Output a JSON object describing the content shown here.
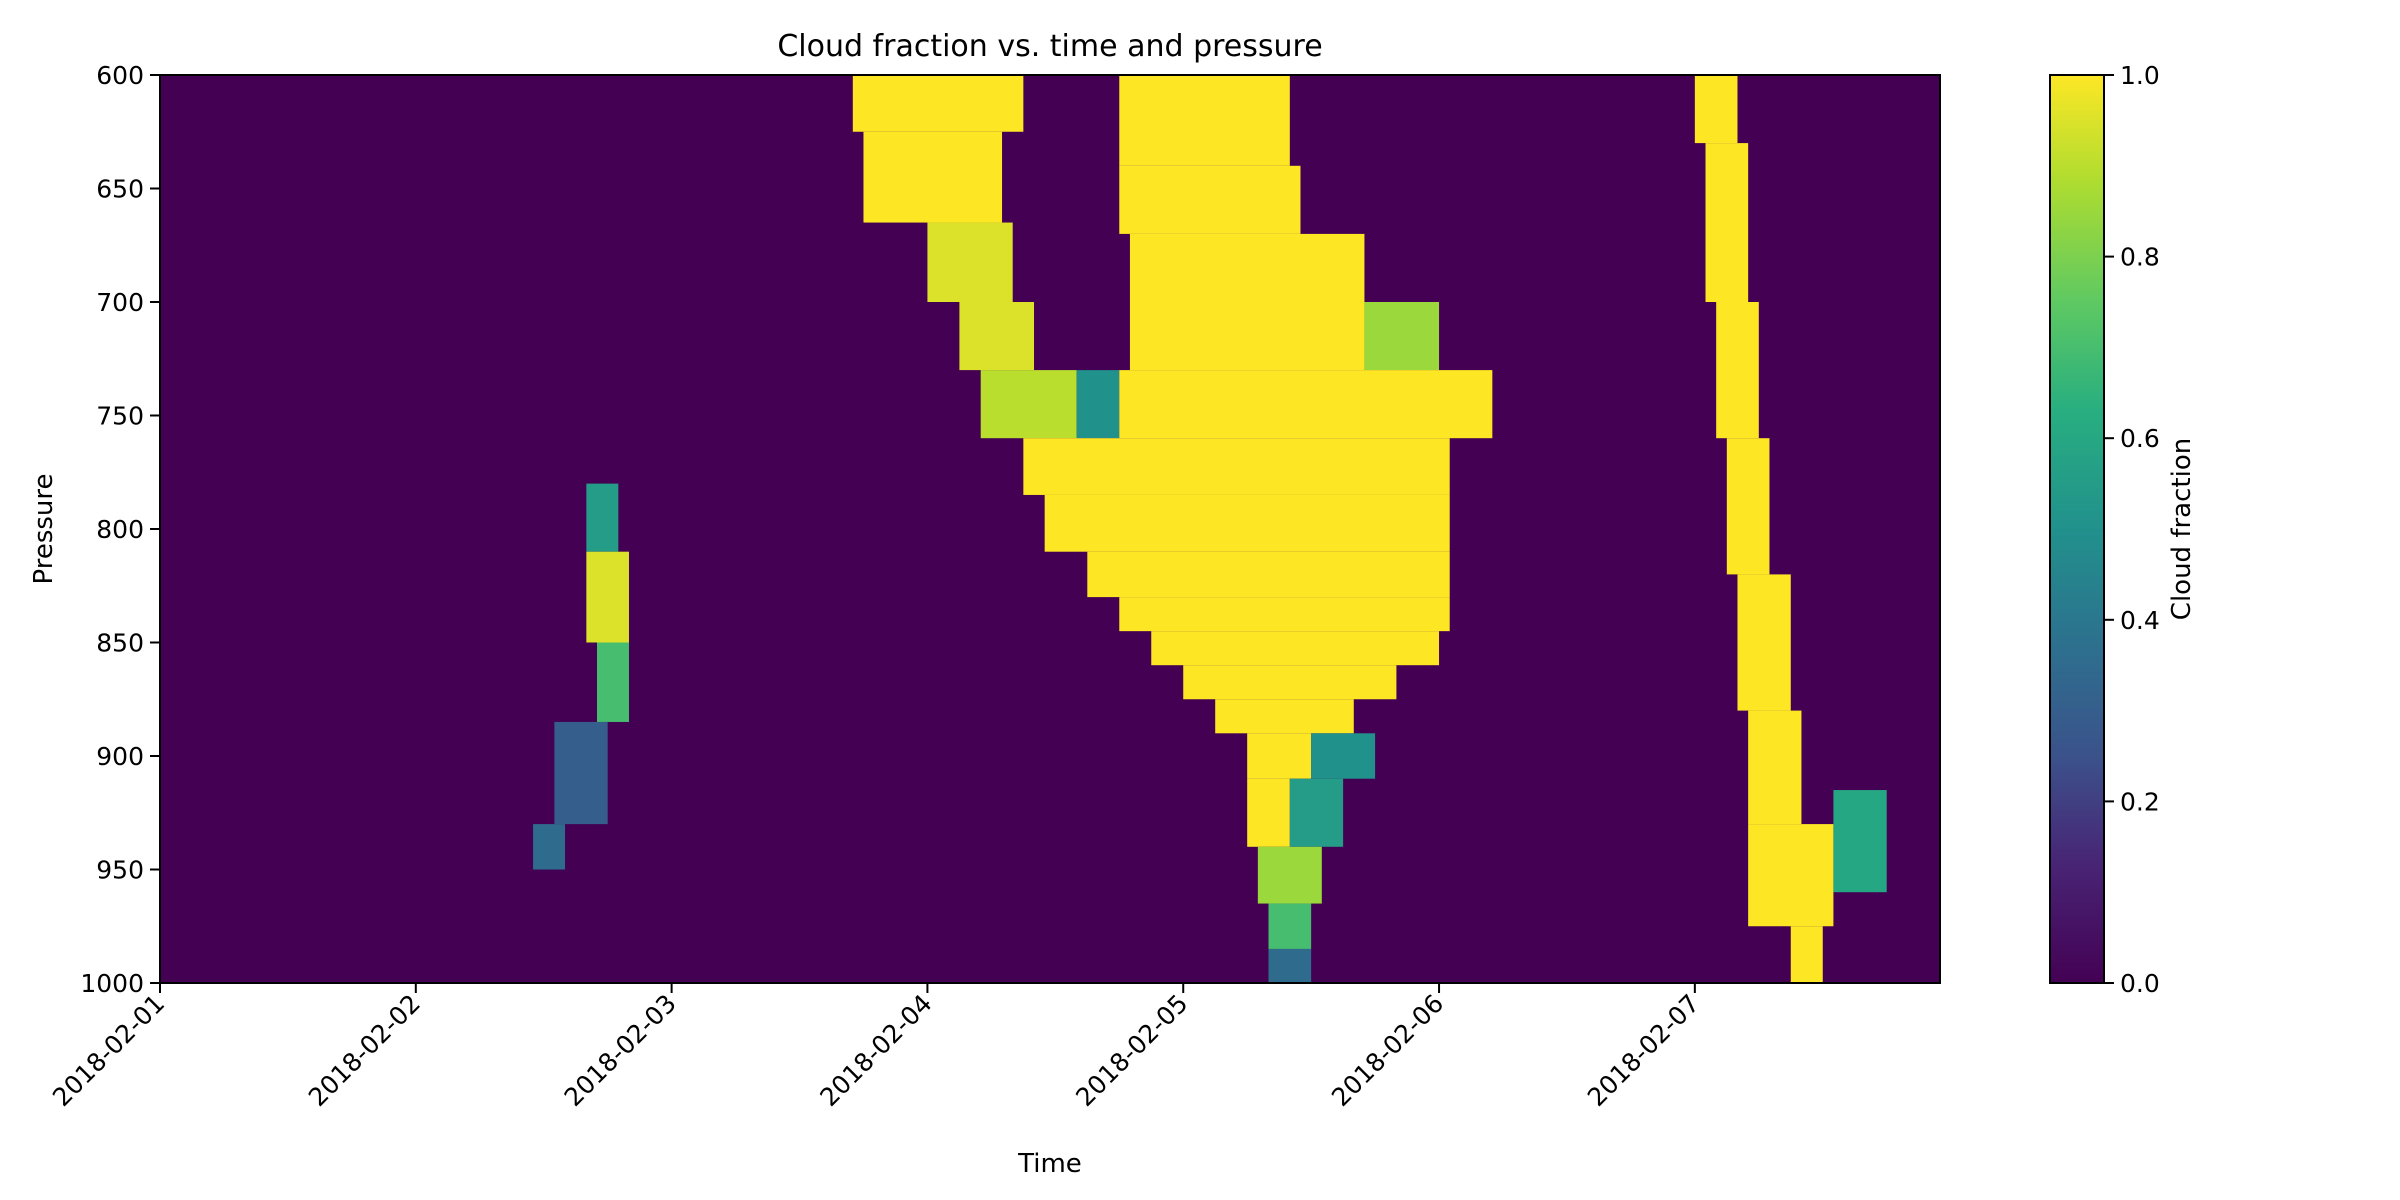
{
  "chart_data": {
    "type": "heatmap",
    "title": "Cloud fraction vs. time and pressure",
    "xlabel": "Time",
    "ylabel": "Pressure",
    "x_ticks": [
      "2018-02-01",
      "2018-02-02",
      "2018-02-03",
      "2018-02-04",
      "2018-02-05",
      "2018-02-06",
      "2018-02-07"
    ],
    "xlim": [
      "2018-02-01T00:00",
      "2018-02-07T23:00"
    ],
    "y_ticks": [
      600,
      650,
      700,
      750,
      800,
      850,
      900,
      950,
      1000
    ],
    "ylim": [
      1000,
      600
    ],
    "y_inverted": true,
    "colorbar": {
      "label": "Cloud fraction",
      "ticks": [
        0.0,
        0.2,
        0.4,
        0.6,
        0.8,
        1.0
      ],
      "tick_labels": [
        "0.0",
        "0.2",
        "0.4",
        "0.6",
        "0.8",
        "1.0"
      ],
      "colormap": "viridis",
      "vmin": 0.0,
      "vmax": 1.0
    },
    "background_value": 0.0,
    "regions": [
      {
        "pressure": [
          780,
          810
        ],
        "time": [
          "2018-02-02T16:00",
          "2018-02-02T19:00"
        ],
        "value": 0.55
      },
      {
        "pressure": [
          810,
          850
        ],
        "time": [
          "2018-02-02T16:00",
          "2018-02-02T20:00"
        ],
        "value": 0.95
      },
      {
        "pressure": [
          850,
          885
        ],
        "time": [
          "2018-02-02T17:00",
          "2018-02-02T20:00"
        ],
        "value": 0.7
      },
      {
        "pressure": [
          885,
          930
        ],
        "time": [
          "2018-02-02T13:00",
          "2018-02-02T18:00"
        ],
        "value": 0.3
      },
      {
        "pressure": [
          930,
          950
        ],
        "time": [
          "2018-02-02T11:00",
          "2018-02-02T14:00"
        ],
        "value": 0.35
      },
      {
        "pressure": [
          600,
          625
        ],
        "time": [
          "2018-02-03T17:00",
          "2018-02-04T09:00"
        ],
        "value": 1.0
      },
      {
        "pressure": [
          625,
          665
        ],
        "time": [
          "2018-02-03T18:00",
          "2018-02-04T07:00"
        ],
        "value": 1.0
      },
      {
        "pressure": [
          665,
          700
        ],
        "time": [
          "2018-02-04T00:00",
          "2018-02-04T08:00"
        ],
        "value": 0.95
      },
      {
        "pressure": [
          700,
          730
        ],
        "time": [
          "2018-02-04T03:00",
          "2018-02-04T10:00"
        ],
        "value": 0.95
      },
      {
        "pressure": [
          730,
          760
        ],
        "time": [
          "2018-02-04T05:00",
          "2018-02-04T14:00"
        ],
        "value": 0.9
      },
      {
        "pressure": [
          730,
          760
        ],
        "time": [
          "2018-02-04T14:00",
          "2018-02-04T18:00"
        ],
        "value": 0.5
      },
      {
        "pressure": [
          600,
          640
        ],
        "time": [
          "2018-02-04T18:00",
          "2018-02-05T10:00"
        ],
        "value": 1.0
      },
      {
        "pressure": [
          640,
          670
        ],
        "time": [
          "2018-02-04T18:00",
          "2018-02-05T11:00"
        ],
        "value": 1.0
      },
      {
        "pressure": [
          670,
          700
        ],
        "time": [
          "2018-02-04T19:00",
          "2018-02-05T17:00"
        ],
        "value": 1.0
      },
      {
        "pressure": [
          700,
          730
        ],
        "time": [
          "2018-02-04T19:00",
          "2018-02-05T17:00"
        ],
        "value": 1.0
      },
      {
        "pressure": [
          700,
          730
        ],
        "time": [
          "2018-02-05T17:00",
          "2018-02-06T00:00"
        ],
        "value": 0.85
      },
      {
        "pressure": [
          730,
          760
        ],
        "time": [
          "2018-02-04T18:00",
          "2018-02-06T05:00"
        ],
        "value": 1.0
      },
      {
        "pressure": [
          760,
          785
        ],
        "time": [
          "2018-02-04T09:00",
          "2018-02-06T01:00"
        ],
        "value": 1.0
      },
      {
        "pressure": [
          785,
          810
        ],
        "time": [
          "2018-02-04T11:00",
          "2018-02-06T01:00"
        ],
        "value": 1.0
      },
      {
        "pressure": [
          810,
          830
        ],
        "time": [
          "2018-02-04T15:00",
          "2018-02-06T01:00"
        ],
        "value": 1.0
      },
      {
        "pressure": [
          830,
          845
        ],
        "time": [
          "2018-02-04T18:00",
          "2018-02-06T01:00"
        ],
        "value": 1.0
      },
      {
        "pressure": [
          845,
          860
        ],
        "time": [
          "2018-02-04T21:00",
          "2018-02-06T00:00"
        ],
        "value": 1.0
      },
      {
        "pressure": [
          860,
          875
        ],
        "time": [
          "2018-02-05T00:00",
          "2018-02-05T20:00"
        ],
        "value": 1.0
      },
      {
        "pressure": [
          875,
          890
        ],
        "time": [
          "2018-02-05T03:00",
          "2018-02-05T16:00"
        ],
        "value": 1.0
      },
      {
        "pressure": [
          890,
          910
        ],
        "time": [
          "2018-02-05T06:00",
          "2018-02-05T12:00"
        ],
        "value": 1.0
      },
      {
        "pressure": [
          890,
          910
        ],
        "time": [
          "2018-02-05T12:00",
          "2018-02-05T18:00"
        ],
        "value": 0.5
      },
      {
        "pressure": [
          910,
          940
        ],
        "time": [
          "2018-02-05T06:00",
          "2018-02-05T10:00"
        ],
        "value": 1.0
      },
      {
        "pressure": [
          910,
          940
        ],
        "time": [
          "2018-02-05T10:00",
          "2018-02-05T15:00"
        ],
        "value": 0.55
      },
      {
        "pressure": [
          940,
          965
        ],
        "time": [
          "2018-02-05T07:00",
          "2018-02-05T13:00"
        ],
        "value": 0.85
      },
      {
        "pressure": [
          965,
          985
        ],
        "time": [
          "2018-02-05T08:00",
          "2018-02-05T12:00"
        ],
        "value": 0.7
      },
      {
        "pressure": [
          985,
          1000
        ],
        "time": [
          "2018-02-05T08:00",
          "2018-02-05T12:00"
        ],
        "value": 0.35
      },
      {
        "pressure": [
          600,
          630
        ],
        "time": [
          "2018-02-07T00:00",
          "2018-02-07T04:00"
        ],
        "value": 1.0
      },
      {
        "pressure": [
          630,
          700
        ],
        "time": [
          "2018-02-07T01:00",
          "2018-02-07T05:00"
        ],
        "value": 1.0
      },
      {
        "pressure": [
          700,
          760
        ],
        "time": [
          "2018-02-07T02:00",
          "2018-02-07T06:00"
        ],
        "value": 1.0
      },
      {
        "pressure": [
          760,
          820
        ],
        "time": [
          "2018-02-07T03:00",
          "2018-02-07T07:00"
        ],
        "value": 1.0
      },
      {
        "pressure": [
          820,
          880
        ],
        "time": [
          "2018-02-07T04:00",
          "2018-02-07T09:00"
        ],
        "value": 1.0
      },
      {
        "pressure": [
          880,
          930
        ],
        "time": [
          "2018-02-07T05:00",
          "2018-02-07T10:00"
        ],
        "value": 1.0
      },
      {
        "pressure": [
          930,
          975
        ],
        "time": [
          "2018-02-07T05:00",
          "2018-02-07T13:00"
        ],
        "value": 1.0
      },
      {
        "pressure": [
          975,
          1000
        ],
        "time": [
          "2018-02-07T09:00",
          "2018-02-07T12:00"
        ],
        "value": 1.0
      },
      {
        "pressure": [
          915,
          960
        ],
        "time": [
          "2018-02-07T13:00",
          "2018-02-07T18:00"
        ],
        "value": 0.6
      }
    ]
  }
}
